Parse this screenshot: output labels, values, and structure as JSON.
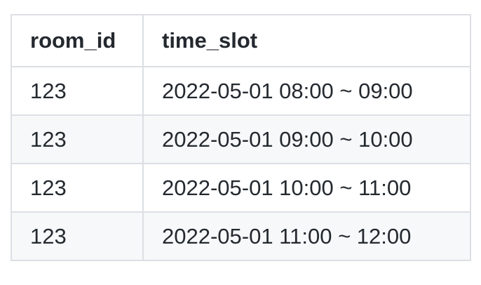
{
  "table": {
    "headers": [
      "room_id",
      "time_slot"
    ],
    "rows": [
      [
        "123",
        "2022-05-01 08:00 ~ 09:00"
      ],
      [
        "123",
        "2022-05-01 09:00 ~ 10:00"
      ],
      [
        "123",
        "2022-05-01 10:00 ~ 11:00"
      ],
      [
        "123",
        "2022-05-01 11:00 ~ 12:00"
      ]
    ]
  }
}
